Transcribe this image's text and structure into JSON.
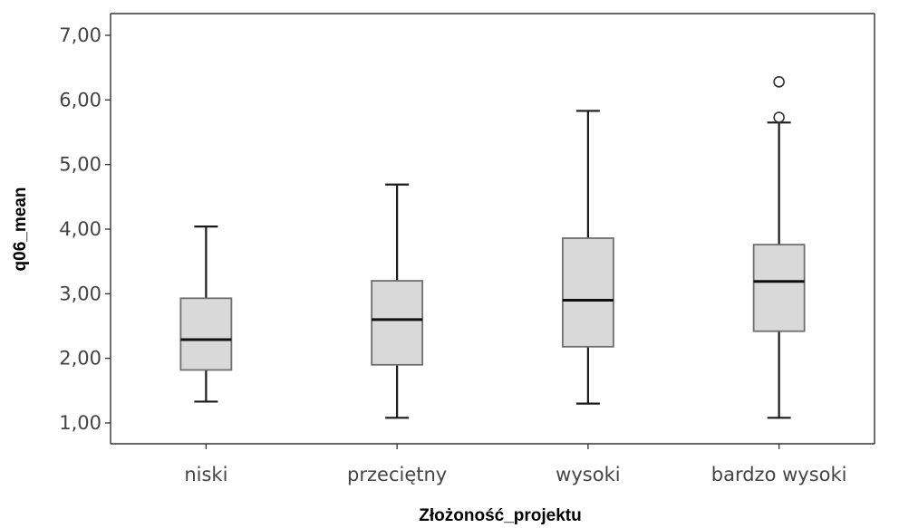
{
  "chart_data": {
    "type": "boxplot",
    "title": "",
    "xlabel": "Złożoność_projektu",
    "ylabel": "q06_mean",
    "ylim": [
      0.7,
      7.2
    ],
    "yticks": [
      1,
      2,
      3,
      4,
      5,
      6,
      7
    ],
    "ytick_labels": [
      "1,00",
      "2,00",
      "3,00",
      "4,00",
      "5,00",
      "6,00",
      "7,00"
    ],
    "categories": [
      "niski",
      "przeciętny",
      "wysoki",
      "bardzo wysoki"
    ],
    "boxes": [
      {
        "category": "niski",
        "whisker_low": 1.33,
        "q1": 1.82,
        "median": 2.29,
        "q3": 2.93,
        "whisker_high": 4.04,
        "outliers": []
      },
      {
        "category": "przeciętny",
        "whisker_low": 1.08,
        "q1": 1.9,
        "median": 2.6,
        "q3": 3.2,
        "whisker_high": 4.69,
        "outliers": []
      },
      {
        "category": "wysoki",
        "whisker_low": 1.3,
        "q1": 2.18,
        "median": 2.9,
        "q3": 3.86,
        "whisker_high": 5.83,
        "outliers": []
      },
      {
        "category": "bardzo wysoki",
        "whisker_low": 1.08,
        "q1": 2.42,
        "median": 3.19,
        "q3": 3.76,
        "whisker_high": 5.65,
        "outliers": [
          5.73,
          6.28
        ]
      }
    ],
    "grid": false,
    "legend": "none",
    "colors": {
      "box_fill": "#d9d9d9",
      "box_stroke": "#6f6f6f",
      "median": "#111111",
      "whisker": "#1a1a1a",
      "axis": "#333333"
    }
  }
}
